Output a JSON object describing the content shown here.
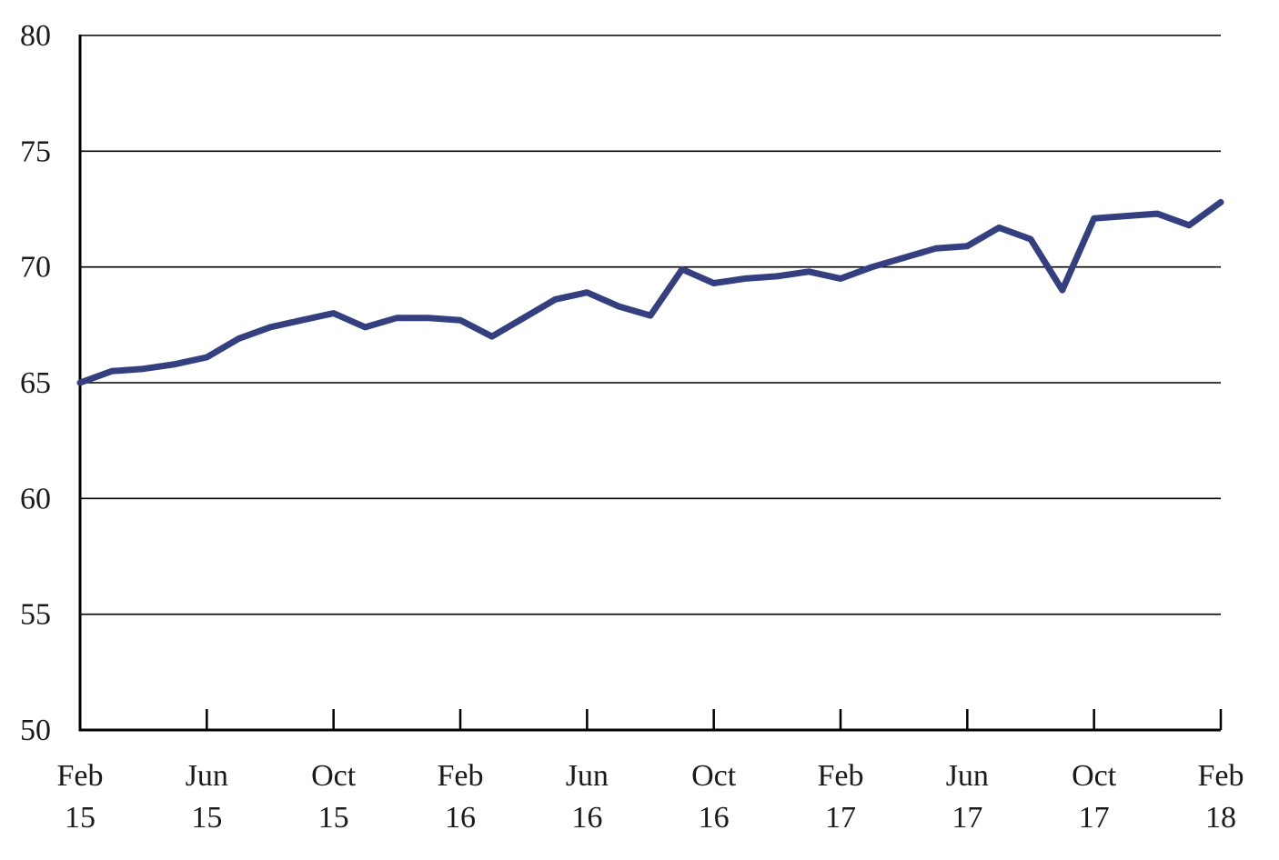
{
  "chart_data": {
    "type": "line",
    "title": "",
    "xlabel": "",
    "ylabel": "",
    "ylim": [
      50,
      80
    ],
    "y_ticks": [
      "50",
      "55",
      "60",
      "65",
      "70",
      "75",
      "80"
    ],
    "x_ticks": [
      {
        "month": "Feb",
        "year": "15",
        "index": 0
      },
      {
        "month": "Jun",
        "year": "15",
        "index": 4
      },
      {
        "month": "Oct",
        "year": "15",
        "index": 8
      },
      {
        "month": "Feb",
        "year": "16",
        "index": 12
      },
      {
        "month": "Jun",
        "year": "16",
        "index": 16
      },
      {
        "month": "Oct",
        "year": "16",
        "index": 20
      },
      {
        "month": "Feb",
        "year": "17",
        "index": 24
      },
      {
        "month": "Jun",
        "year": "17",
        "index": 28
      },
      {
        "month": "Oct",
        "year": "17",
        "index": 32
      },
      {
        "month": "Feb",
        "year": "18",
        "index": 36
      }
    ],
    "grid": true,
    "series": [
      {
        "color": "#343f80",
        "x": [
          "Feb 15",
          "Mar 15",
          "Apr 15",
          "May 15",
          "Jun 15",
          "Jul 15",
          "Aug 15",
          "Sep 15",
          "Oct 15",
          "Nov 15",
          "Dec 15",
          "Jan 16",
          "Feb 16",
          "Mar 16",
          "Apr 16",
          "May 16",
          "Jun 16",
          "Jul 16",
          "Aug 16",
          "Sep 16",
          "Oct 16",
          "Nov 16",
          "Dec 16",
          "Jan 17",
          "Feb 17",
          "Mar 17",
          "Apr 17",
          "May 17",
          "Jun 17",
          "Jul 17",
          "Aug 17",
          "Sep 17",
          "Oct 17",
          "Nov 17",
          "Dec 17",
          "Jan 18",
          "Feb 18"
        ],
        "values": [
          65.0,
          65.5,
          65.6,
          65.8,
          66.1,
          66.9,
          67.4,
          67.7,
          68.0,
          67.4,
          67.8,
          67.8,
          67.7,
          67.0,
          67.8,
          68.6,
          68.9,
          68.3,
          67.9,
          69.9,
          69.3,
          69.5,
          69.6,
          69.8,
          69.5,
          70.0,
          70.4,
          70.8,
          70.9,
          71.7,
          71.2,
          69.0,
          72.1,
          72.2,
          72.3,
          71.8,
          72.8
        ]
      }
    ]
  }
}
